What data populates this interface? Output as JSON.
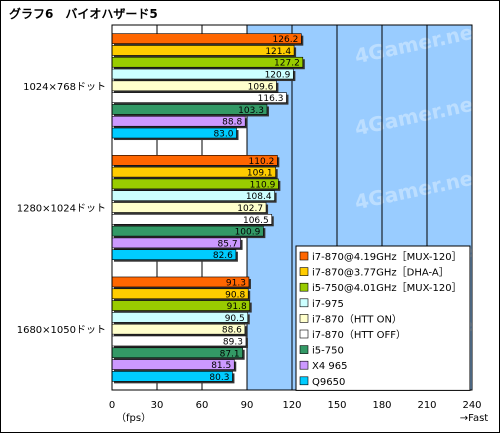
{
  "chart_data": {
    "type": "bar",
    "orientation": "horizontal",
    "title": "グラフ6　バイオハザード5",
    "categories": [
      "1024×768ドット",
      "1280×1024ドット",
      "1680×1050ドット"
    ],
    "series": [
      {
        "name": "i7-870@4.19GHz［MUX-120］",
        "color": "#ff6600",
        "values": [
          126.2,
          110.2,
          91.3
        ]
      },
      {
        "name": "i7-870@3.77GHz［DHA-A］",
        "color": "#ffcc00",
        "values": [
          121.4,
          109.1,
          90.8
        ]
      },
      {
        "name": "i5-750@4.01GHz［MUX-120］",
        "color": "#99cc00",
        "values": [
          127.2,
          110.9,
          91.8
        ]
      },
      {
        "name": "i7-975",
        "color": "#ccffff",
        "values": [
          120.9,
          108.4,
          90.5
        ]
      },
      {
        "name": "i7-870（HTT ON）",
        "color": "#ffffcc",
        "values": [
          109.6,
          102.7,
          88.6
        ]
      },
      {
        "name": "i7-870（HTT OFF）",
        "color": "#ffffff",
        "values": [
          116.3,
          106.5,
          89.3
        ]
      },
      {
        "name": "i5-750",
        "color": "#339966",
        "values": [
          103.3,
          100.9,
          87.1
        ]
      },
      {
        "name": "X4 965",
        "color": "#cc99ff",
        "values": [
          88.8,
          85.7,
          81.5
        ]
      },
      {
        "name": "Q9650",
        "color": "#00ccff",
        "values": [
          83.0,
          82.6,
          80.3
        ]
      }
    ],
    "xlim": [
      0,
      240
    ],
    "xticks": [
      0,
      30,
      60,
      90,
      120,
      150,
      180,
      210,
      240
    ],
    "xunit_left": "（fps）",
    "xunit_right": "→Fast",
    "watermark": "4Gamer.net",
    "grid": true,
    "legend_position": "bottom-right",
    "plot_background": "#99ccff"
  }
}
